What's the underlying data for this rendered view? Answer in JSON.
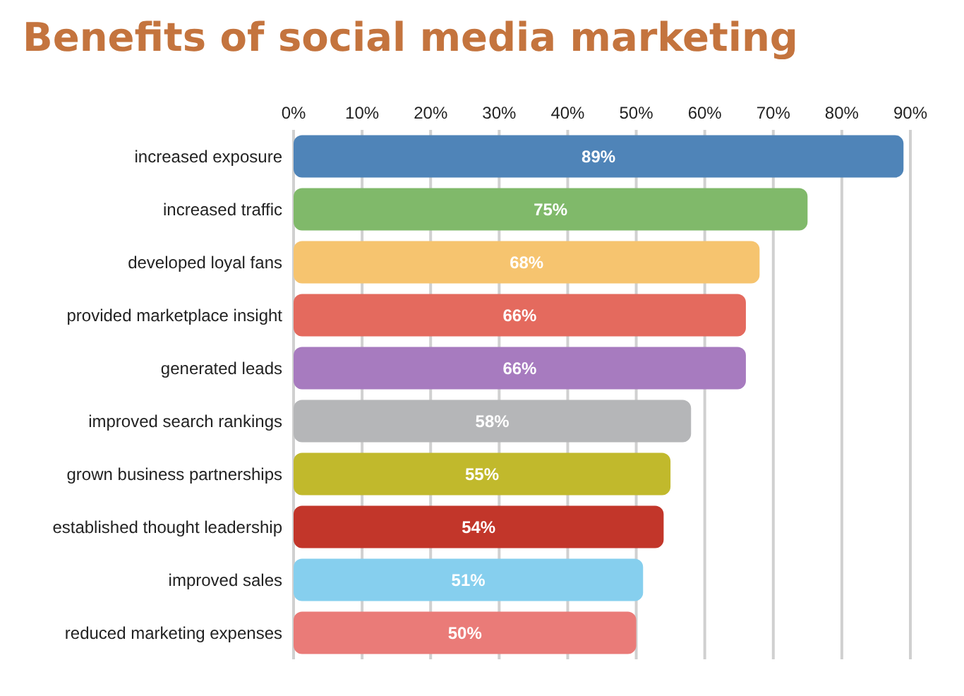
{
  "chart_data": {
    "type": "bar",
    "title": "Benefits of social media marketing",
    "orientation": "horizontal",
    "categories": [
      "increased exposure",
      "increased traffic",
      "developed loyal fans",
      "provided marketplace insight",
      "generated leads",
      "improved search rankings",
      "grown business partnerships",
      "established thought leadership",
      "improved sales",
      "reduced marketing expenses"
    ],
    "values": [
      89,
      75,
      68,
      66,
      66,
      58,
      55,
      54,
      51,
      50
    ],
    "colors": [
      "#4f84b8",
      "#80b96a",
      "#f6c46f",
      "#e46a5e",
      "#a77bbf",
      "#b5b6b8",
      "#c1b92c",
      "#c2362a",
      "#86cfee",
      "#ea7b78"
    ],
    "value_labels": [
      "89%",
      "75%",
      "68%",
      "66%",
      "66%",
      "58%",
      "55%",
      "54%",
      "51%",
      "50%"
    ],
    "xlim": [
      0,
      90
    ],
    "xticks": [
      {
        "value": 0,
        "label": "0%"
      },
      {
        "value": 10,
        "label": "10%"
      },
      {
        "value": 20,
        "label": "20%"
      },
      {
        "value": 30,
        "label": "30%"
      },
      {
        "value": 40,
        "label": "40%"
      },
      {
        "value": 50,
        "label": "50%"
      },
      {
        "value": 60,
        "label": "60%"
      },
      {
        "value": 70,
        "label": "70%"
      },
      {
        "value": 80,
        "label": "80%"
      },
      {
        "value": 90,
        "label": "90%"
      }
    ],
    "grid": "x"
  }
}
